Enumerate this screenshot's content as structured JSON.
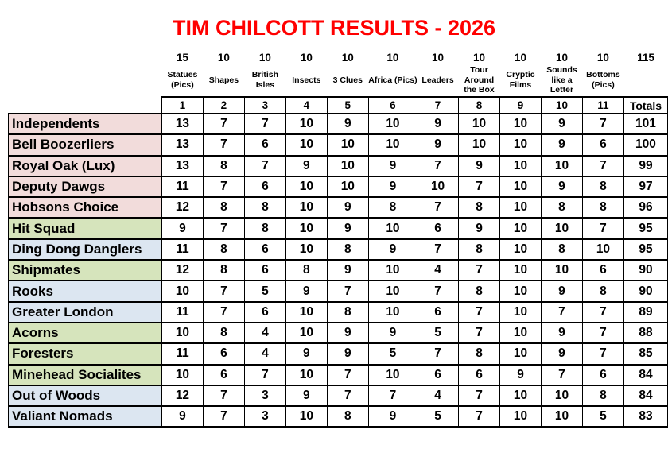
{
  "title": "TIM CHILCOTT RESULTS - 2026",
  "colors": {
    "title": "#FF0000",
    "text": "#000000",
    "pink": "#F2DCDB",
    "green": "#D6E4BC",
    "blue": "#DCE6F1"
  },
  "header": {
    "max_points": [
      "15",
      "10",
      "10",
      "10",
      "10",
      "10",
      "10",
      "10",
      "10",
      "10",
      "10",
      "115"
    ],
    "categories": [
      "Statues\n(Pics)",
      "Shapes",
      "British\nIsles",
      "Insects",
      "3 Clues",
      "Africa (Pics)",
      "Leaders",
      "Tour\nAround\nthe Box",
      "Cryptic\nFilms",
      "Sounds\nlike a\nLetter",
      "Bottoms\n(Pics)"
    ],
    "round_numbers": [
      "1",
      "2",
      "3",
      "4",
      "5",
      "6",
      "7",
      "8",
      "9",
      "10",
      "11"
    ],
    "totals_label": "Totals"
  },
  "teams": [
    {
      "name": "Independents",
      "color": "pink",
      "scores": [
        13,
        7,
        7,
        10,
        9,
        10,
        9,
        10,
        10,
        9,
        7
      ],
      "total": 101
    },
    {
      "name": "Bell Boozerliers",
      "color": "pink",
      "scores": [
        13,
        7,
        6,
        10,
        10,
        10,
        9,
        10,
        10,
        9,
        6
      ],
      "total": 100
    },
    {
      "name": "Royal Oak (Lux)",
      "color": "pink",
      "scores": [
        13,
        8,
        7,
        9,
        10,
        9,
        7,
        9,
        10,
        10,
        7
      ],
      "total": 99
    },
    {
      "name": "Deputy Dawgs",
      "color": "pink",
      "scores": [
        11,
        7,
        6,
        10,
        10,
        9,
        10,
        7,
        10,
        9,
        8
      ],
      "total": 97
    },
    {
      "name": "Hobsons Choice",
      "color": "pink",
      "scores": [
        12,
        8,
        8,
        10,
        9,
        8,
        7,
        8,
        10,
        8,
        8
      ],
      "total": 96
    },
    {
      "name": "Hit Squad",
      "color": "green",
      "scores": [
        9,
        7,
        8,
        10,
        9,
        10,
        6,
        9,
        10,
        10,
        7
      ],
      "total": 95
    },
    {
      "name": "Ding Dong Danglers",
      "color": "blue",
      "scores": [
        11,
        8,
        6,
        10,
        8,
        9,
        7,
        8,
        10,
        8,
        10
      ],
      "total": 95
    },
    {
      "name": "Shipmates",
      "color": "green",
      "scores": [
        12,
        8,
        6,
        8,
        9,
        10,
        4,
        7,
        10,
        10,
        6
      ],
      "total": 90
    },
    {
      "name": "Rooks",
      "color": "blue",
      "scores": [
        10,
        7,
        5,
        9,
        7,
        10,
        7,
        8,
        10,
        9,
        8
      ],
      "total": 90
    },
    {
      "name": "Greater London",
      "color": "blue",
      "scores": [
        11,
        7,
        6,
        10,
        8,
        10,
        6,
        7,
        10,
        7,
        7
      ],
      "total": 89
    },
    {
      "name": "Acorns",
      "color": "green",
      "scores": [
        10,
        8,
        4,
        10,
        9,
        9,
        5,
        7,
        10,
        9,
        7
      ],
      "total": 88
    },
    {
      "name": "Foresters",
      "color": "green",
      "scores": [
        11,
        6,
        4,
        9,
        9,
        5,
        7,
        8,
        10,
        9,
        7
      ],
      "total": 85
    },
    {
      "name": "Minehead Socialites",
      "color": "green",
      "scores": [
        10,
        6,
        7,
        10,
        7,
        10,
        6,
        6,
        9,
        7,
        6
      ],
      "total": 84
    },
    {
      "name": "Out of Woods",
      "color": "blue",
      "scores": [
        12,
        7,
        3,
        9,
        7,
        7,
        4,
        7,
        10,
        10,
        8
      ],
      "total": 84
    },
    {
      "name": "Valiant Nomads",
      "color": "blue",
      "scores": [
        9,
        7,
        3,
        10,
        8,
        9,
        5,
        7,
        10,
        10,
        5
      ],
      "total": 83
    }
  ]
}
